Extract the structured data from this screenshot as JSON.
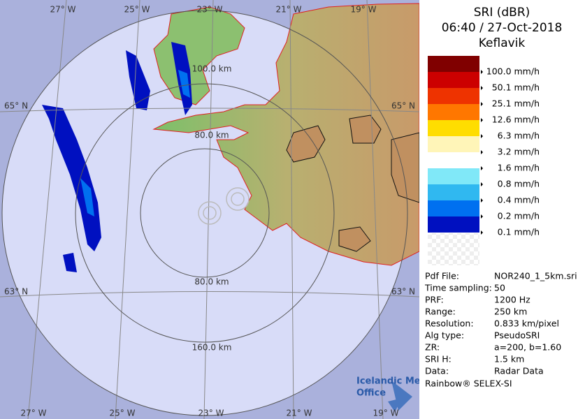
{
  "map": {
    "lon_labels_top": [
      "27° W",
      "25° W",
      "23° W",
      "21° W",
      "19° W"
    ],
    "lon_labels_bottom": [
      "27° W",
      "25° W",
      "23° W",
      "21° W",
      "19° W"
    ],
    "lat_labels_left": [
      "65° N",
      "63° N"
    ],
    "lat_labels_right": [
      "65° N",
      "63° N"
    ],
    "range_labels": [
      "100.0 km",
      "80.0 km",
      "80.0 km",
      "160.0 km"
    ],
    "logo": [
      "Icelandic Met",
      "Office"
    ]
  },
  "panel": {
    "title": [
      "SRI (dBR)",
      "06:40 / 27-Oct-2018",
      "Keflavik"
    ],
    "legend": [
      {
        "label": "100.0 mm/h",
        "color": "#800000"
      },
      {
        "label": "50.1 mm/h",
        "color": "#cc0000"
      },
      {
        "label": "25.1 mm/h",
        "color": "#ee3300"
      },
      {
        "label": "12.6 mm/h",
        "color": "#ff7700"
      },
      {
        "label": "6.3 mm/h",
        "color": "#ffdd00"
      },
      {
        "label": "3.2 mm/h",
        "color": "#fff5b8"
      },
      {
        "label": "1.6 mm/h",
        "color": "#ffffff"
      },
      {
        "label": "0.8 mm/h",
        "color": "#80e8f8"
      },
      {
        "label": "0.4 mm/h",
        "color": "#30b8f0"
      },
      {
        "label": "0.2 mm/h",
        "color": "#0070f0"
      },
      {
        "label": "0.1 mm/h",
        "color": "#0010c0"
      }
    ],
    "info": [
      [
        "Pdf File:",
        "NOR240_1_5km.sri"
      ],
      [
        "Time sampling:",
        "50"
      ],
      [
        "PRF:",
        "1200 Hz"
      ],
      [
        "Range:",
        "250 km"
      ],
      [
        "Resolution:",
        "0.833 km/pixel"
      ],
      [
        "Alg type:",
        "PseudoSRI"
      ],
      [
        "ZR:",
        "a=200, b=1.60"
      ],
      [
        "SRI H:",
        "1.5 km"
      ],
      [
        "Data:",
        "Radar Data"
      ]
    ],
    "footer": "Rainbow® SELEX-SI"
  }
}
